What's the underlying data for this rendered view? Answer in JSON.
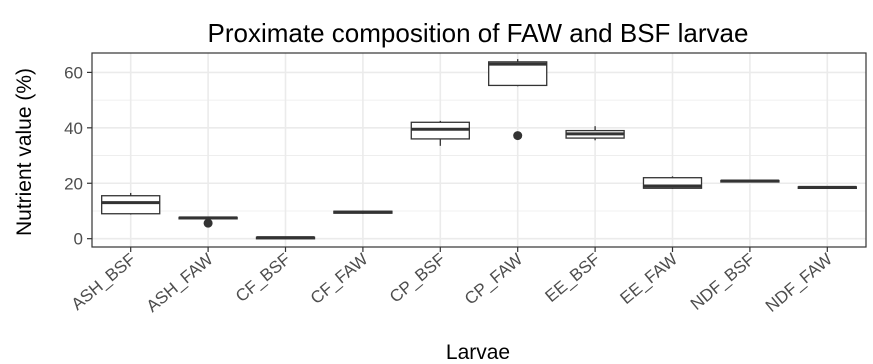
{
  "chart_data": {
    "type": "box",
    "title": "Proximate composition of FAW and BSF larvae",
    "xlabel": "Larvae",
    "ylabel": "Nutrient value (%)",
    "ylim": [
      -3,
      67
    ],
    "yticks": [
      0,
      20,
      40,
      60
    ],
    "grid": true,
    "legend": "none",
    "categories": [
      "ASH_BSF",
      "ASH_FAW",
      "CF_BSF",
      "CF_FAW",
      "CP_BSF",
      "CP_FAW",
      "EE_BSF",
      "EE_FAW",
      "NDF_BSF",
      "NDF_FAW"
    ],
    "boxes": [
      {
        "category": "ASH_BSF",
        "min": 8.7,
        "q1": 9.0,
        "median": 13.0,
        "q3": 15.5,
        "max": 16.5,
        "outliers": []
      },
      {
        "category": "ASH_FAW",
        "min": 7.2,
        "q1": 7.3,
        "median": 7.5,
        "q3": 7.7,
        "max": 7.8,
        "outliers": [
          5.6
        ]
      },
      {
        "category": "CF_BSF",
        "min": 0.2,
        "q1": 0.3,
        "median": 0.4,
        "q3": 0.5,
        "max": 0.6,
        "outliers": []
      },
      {
        "category": "CF_FAW",
        "min": 9.0,
        "q1": 9.2,
        "median": 9.6,
        "q3": 9.9,
        "max": 10.1,
        "outliers": []
      },
      {
        "category": "CP_BSF",
        "min": 33.5,
        "q1": 36.0,
        "median": 39.5,
        "q3": 42.0,
        "max": 42.5,
        "outliers": []
      },
      {
        "category": "CP_FAW",
        "min": 55.0,
        "q1": 55.3,
        "median": 63.0,
        "q3": 63.8,
        "max": 64.8,
        "outliers": [
          37.2
        ]
      },
      {
        "category": "EE_BSF",
        "min": 35.5,
        "q1": 36.3,
        "median": 37.8,
        "q3": 39.0,
        "max": 40.6,
        "outliers": []
      },
      {
        "category": "EE_FAW",
        "min": 18.0,
        "q1": 18.2,
        "median": 19.0,
        "q3": 22.0,
        "max": 22.5,
        "outliers": []
      },
      {
        "category": "NDF_BSF",
        "min": 20.5,
        "q1": 20.6,
        "median": 20.8,
        "q3": 21.0,
        "max": 21.1,
        "outliers": []
      },
      {
        "category": "NDF_FAW",
        "min": 18.2,
        "q1": 18.3,
        "median": 18.5,
        "q3": 18.7,
        "max": 18.8,
        "outliers": []
      }
    ],
    "colors": {
      "panel_border": "#333333",
      "grid": "#ebebeb",
      "box_line": "#333333",
      "box_fill": "#ffffff",
      "tick_text": "#4d4d4d"
    }
  }
}
